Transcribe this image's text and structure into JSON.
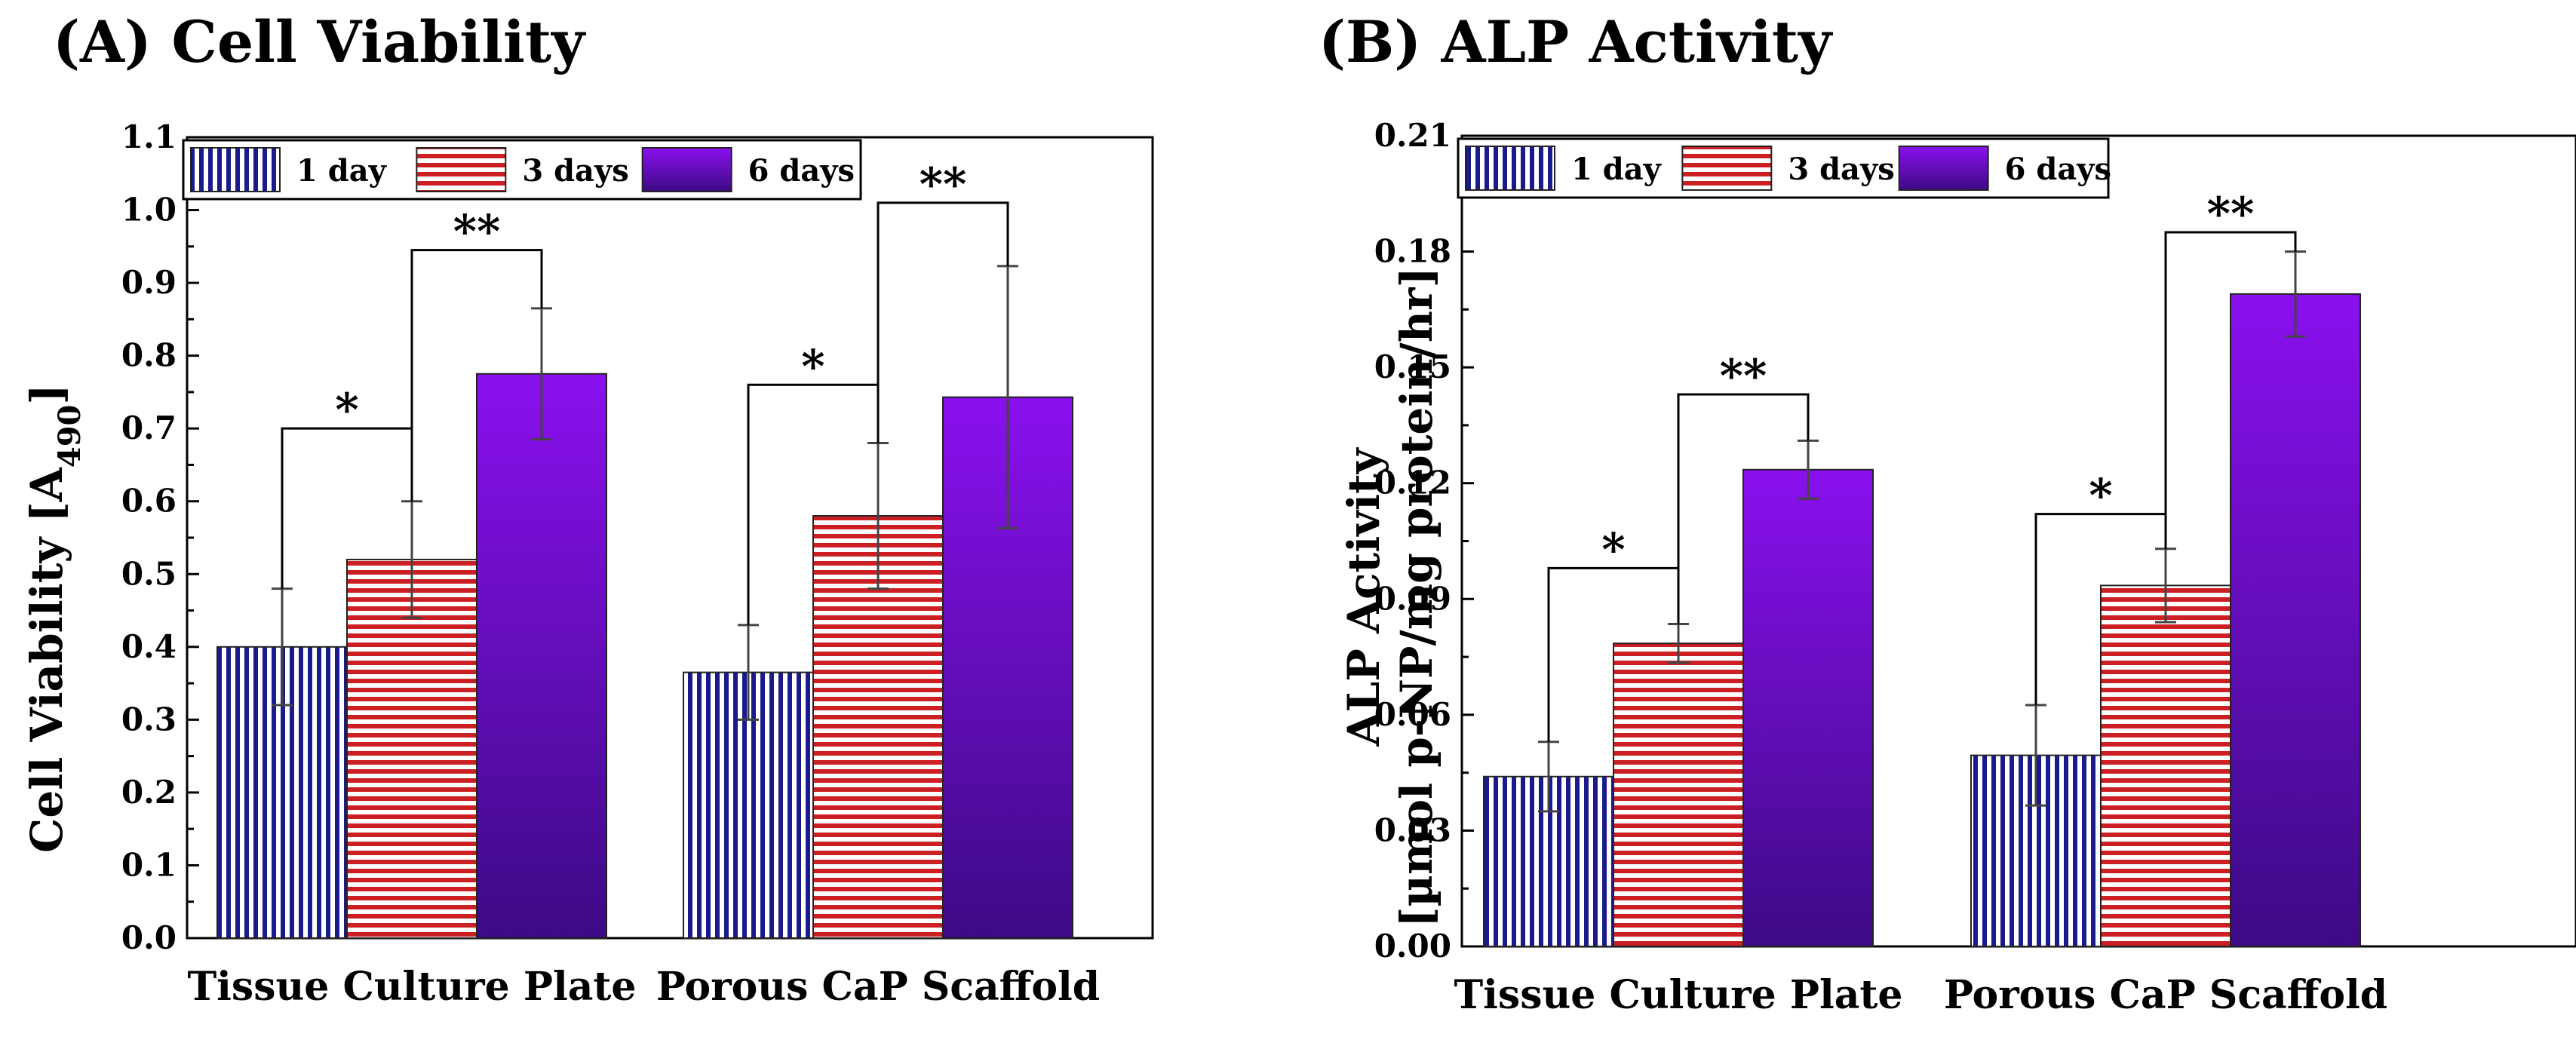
{
  "panels": [
    {
      "title": "(A) Cell Viability",
      "ylabel_lines": [
        "Cell Viability [A",
        "490",
        "]"
      ]
    },
    {
      "title": "(B) ALP Activity",
      "ylabel_lines": [
        "ALP Activity",
        "[µmol p-NP/mg protein/hr]"
      ]
    }
  ],
  "colors": {
    "day1": "#1a1a8c",
    "day3": "#cc1f24",
    "day6_top": "#8a10ee",
    "day6_bottom": "#3d0a85"
  },
  "chart_data": [
    {
      "type": "bar",
      "title": "(A) Cell Viability",
      "ylabel": "Cell Viability [A490]",
      "xlabel": "",
      "categories": [
        "Tissue Culture Plate",
        "Porous CaP Scaffold"
      ],
      "ylim": [
        0.0,
        1.1
      ],
      "yticks": [
        "0.0",
        "0.1",
        "0.2",
        "0.3",
        "0.4",
        "0.5",
        "0.6",
        "0.7",
        "0.8",
        "0.9",
        "1.0",
        "1.1"
      ],
      "legend": [
        "1 day",
        "3 days",
        "6 days"
      ],
      "legend_position": "top-left",
      "series": [
        {
          "name": "1 day",
          "values": [
            0.4,
            0.365
          ],
          "errors": [
            0.08,
            0.065
          ]
        },
        {
          "name": "3 days",
          "values": [
            0.52,
            0.58
          ],
          "errors": [
            0.08,
            0.1
          ]
        },
        {
          "name": "6 days",
          "values": [
            0.775,
            0.743
          ],
          "errors": [
            0.09,
            0.18
          ]
        }
      ],
      "significance": [
        {
          "category": 0,
          "from": 0,
          "to": 1,
          "label": "*",
          "level": 0.7
        },
        {
          "category": 0,
          "from": 1,
          "to": 2,
          "label": "**",
          "level": 0.945
        },
        {
          "category": 1,
          "from": 0,
          "to": 1,
          "label": "*",
          "level": 0.76
        },
        {
          "category": 1,
          "from": 1,
          "to": 2,
          "label": "**",
          "level": 1.01
        }
      ]
    },
    {
      "type": "bar",
      "title": "(B) ALP Activity",
      "ylabel": "ALP Activity [µmol p-NP/mg protein/hr]",
      "xlabel": "",
      "categories": [
        "Tissue Culture Plate",
        "Porous CaP Scaffold"
      ],
      "ylim": [
        0.0,
        0.21
      ],
      "yticks": [
        "0.00",
        "0.03",
        "0.06",
        "0.09",
        "0.12",
        "0.15",
        "0.18",
        "0.21"
      ],
      "legend": [
        "1 day",
        "3 days",
        "6 days"
      ],
      "legend_position": "top-left",
      "series": [
        {
          "name": "1 day",
          "values": [
            0.044,
            0.0495
          ],
          "errors": [
            0.009,
            0.013
          ]
        },
        {
          "name": "3 days",
          "values": [
            0.0785,
            0.0935
          ],
          "errors": [
            0.005,
            0.0095
          ]
        },
        {
          "name": "6 days",
          "values": [
            0.1235,
            0.169
          ],
          "errors": [
            0.0075,
            0.011
          ]
        }
      ],
      "significance": [
        {
          "category": 0,
          "from": 0,
          "to": 1,
          "label": "*",
          "level": 0.098
        },
        {
          "category": 0,
          "from": 1,
          "to": 2,
          "label": "**",
          "level": 0.143
        },
        {
          "category": 1,
          "from": 0,
          "to": 1,
          "label": "*",
          "level": 0.112
        },
        {
          "category": 1,
          "from": 1,
          "to": 2,
          "label": "**",
          "level": 0.185
        }
      ]
    }
  ]
}
